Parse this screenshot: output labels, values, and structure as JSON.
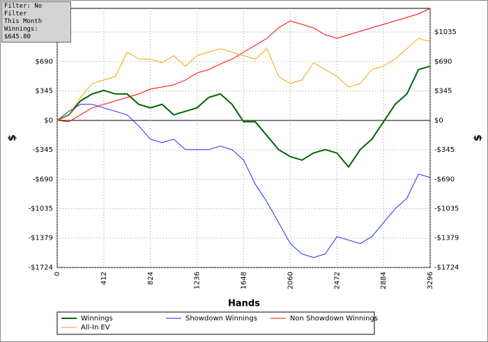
{
  "chart_data": {
    "type": "line",
    "annotations": [
      "Filter: No Filter",
      "This Month",
      "Winnings: $645.80"
    ],
    "xlabel": "Hands",
    "ylabel": "$",
    "x": [
      0,
      103,
      206,
      309,
      412,
      515,
      618,
      721,
      824,
      927,
      1030,
      1133,
      1236,
      1339,
      1442,
      1545,
      1648,
      1751,
      1854,
      1957,
      2060,
      2163,
      2266,
      2369,
      2472,
      2575,
      2678,
      2781,
      2884,
      2987,
      3090,
      3193,
      3296
    ],
    "series": [
      {
        "name": "Winnings",
        "color": "#006400",
        "values": [
          0,
          65,
          228,
          310,
          351,
          310,
          310,
          188,
          147,
          188,
          65,
          106,
          147,
          269,
          310,
          188,
          -16,
          -16,
          -179,
          -343,
          -424,
          -465,
          -383,
          -343,
          -383,
          -546,
          -343,
          -220,
          -16,
          188,
          310,
          595,
          636
        ]
      },
      {
        "name": "Showdown Winnings",
        "color": "#2020ff",
        "values": [
          0,
          106,
          188,
          188,
          147,
          106,
          65,
          -65,
          -220,
          -261,
          -220,
          -343,
          -343,
          -343,
          -302,
          -343,
          -465,
          -750,
          -954,
          -1199,
          -1444,
          -1566,
          -1607,
          -1566,
          -1362,
          -1403,
          -1444,
          -1362,
          -1199,
          -1036,
          -913,
          -628,
          -669
        ]
      },
      {
        "name": "Non Showdown Winnings",
        "color": "#ff0000",
        "values": [
          0,
          -16,
          65,
          147,
          188,
          228,
          269,
          310,
          367,
          391,
          416,
          473,
          555,
          595,
          661,
          718,
          799,
          881,
          962,
          1085,
          1166,
          1125,
          1085,
          1003,
          962,
          1003,
          1044,
          1085,
          1125,
          1166,
          1207,
          1248,
          1313
        ]
      },
      {
        "name": "All-In EV",
        "color": "#f5a300",
        "values": [
          0,
          65,
          269,
          432,
          473,
          514,
          799,
          718,
          718,
          677,
          758,
          636,
          758,
          799,
          840,
          799,
          758,
          718,
          840,
          514,
          432,
          473,
          677,
          595,
          514,
          391,
          432,
          595,
          636,
          718,
          840,
          962,
          921
        ]
      }
    ],
    "xlim": [
      0,
      3296
    ],
    "xticks": [
      0,
      412,
      824,
      1236,
      1648,
      2060,
      2472,
      2884,
      3296
    ],
    "ylim": [
      -1724,
      1313
    ],
    "yticks": [
      {
        "value": -1724,
        "label": "-$1724"
      },
      {
        "value": -1379,
        "label": "-$1379"
      },
      {
        "value": -1035,
        "label": "-$1035"
      },
      {
        "value": -690,
        "label": "-$690"
      },
      {
        "value": -345,
        "label": "-$345"
      },
      {
        "value": 0,
        "label": "$0"
      },
      {
        "value": 345,
        "label": "$345"
      },
      {
        "value": 690,
        "label": "$690"
      },
      {
        "value": 1035,
        "label": "$1035"
      }
    ],
    "grid": true,
    "legend": "bottom"
  }
}
